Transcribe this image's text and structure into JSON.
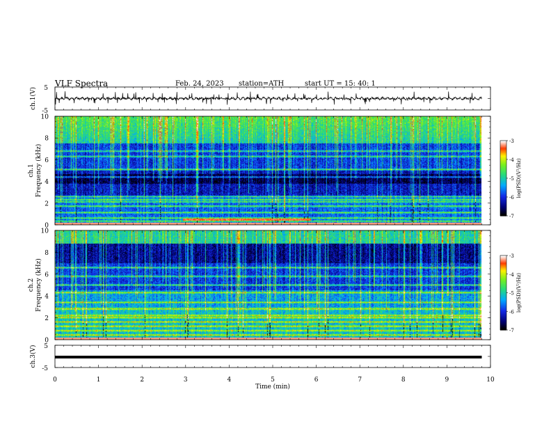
{
  "header": {
    "title": "VLF Spectra",
    "date": "Feb. 24, 2023",
    "station": "station=ATH",
    "start": "start UT =  15: 40: 1"
  },
  "panels": {
    "ch1_wave": {
      "ylabel": "ch.1(V)",
      "ymin_label": "-5",
      "ymax_label": "5"
    },
    "ch1_spec": {
      "ylabel": "ch.1\nFrequency (kHz)",
      "yticks": [
        "0",
        "2",
        "4",
        "6",
        "8",
        "10"
      ]
    },
    "ch2_spec": {
      "ylabel": "ch.2\nFrequency (kHz)",
      "yticks": [
        "0",
        "2",
        "4",
        "6",
        "8",
        "10"
      ]
    },
    "ch3_wave": {
      "ylabel": "ch.3(V)",
      "ymin_label": "-5",
      "ymax_label": "5"
    }
  },
  "colorbar": {
    "label": "log(PSD)(V²/Hz)",
    "ticks": [
      "-3",
      "-4",
      "-5",
      "-6",
      "-7"
    ]
  },
  "chart_data": [
    {
      "type": "line",
      "name": "ch1-waveform",
      "ylabel": "ch.1(V)",
      "xlabel": "",
      "xlim": [
        0,
        10
      ],
      "ylim": [
        -5,
        5
      ],
      "data_extent_min": 9.8,
      "baseline": 0,
      "amplitude_typical": 0.6,
      "spike_min": -2.8,
      "spike_max": 3.5
    },
    {
      "type": "heatmap",
      "name": "ch1-spectrogram",
      "ylabel": "Frequency (kHz)",
      "xlim": [
        0,
        10
      ],
      "ylim": [
        0,
        10
      ],
      "data_extent_min": 9.8,
      "colorscale_range": [
        -7,
        -3
      ],
      "bands_khz": [
        0.3,
        0.6,
        1.1,
        1.7,
        2.1,
        2.3,
        2.6,
        4.4,
        5.1,
        6.3,
        6.8
      ],
      "dark_zone_khz": [
        3.8,
        4.7
      ]
    },
    {
      "type": "heatmap",
      "name": "ch2-spectrogram",
      "ylabel": "Frequency (kHz)",
      "xlim": [
        0,
        10
      ],
      "ylim": [
        0,
        10
      ],
      "data_extent_min": 9.8,
      "colorscale_range": [
        -7,
        -3
      ],
      "bands_khz": [
        0.4,
        0.8,
        1.2,
        1.6,
        2.0,
        2.2,
        2.8,
        3.4,
        4.3,
        5.0,
        5.8,
        6.6
      ],
      "dark_zone_khz": [
        7.0,
        8.8
      ]
    },
    {
      "type": "line",
      "name": "ch3-waveform",
      "ylabel": "ch.3(V)",
      "xlabel": "Time (min)",
      "xlim": [
        0,
        10
      ],
      "ylim": [
        -5,
        5
      ],
      "data_extent_min": 9.8,
      "baseline": 0,
      "amplitude_typical": 0.3
    }
  ],
  "xaxis": {
    "label": "Time (min)",
    "ticks": [
      "0",
      "1",
      "2",
      "3",
      "4",
      "5",
      "6",
      "7",
      "8",
      "9",
      "10"
    ]
  }
}
